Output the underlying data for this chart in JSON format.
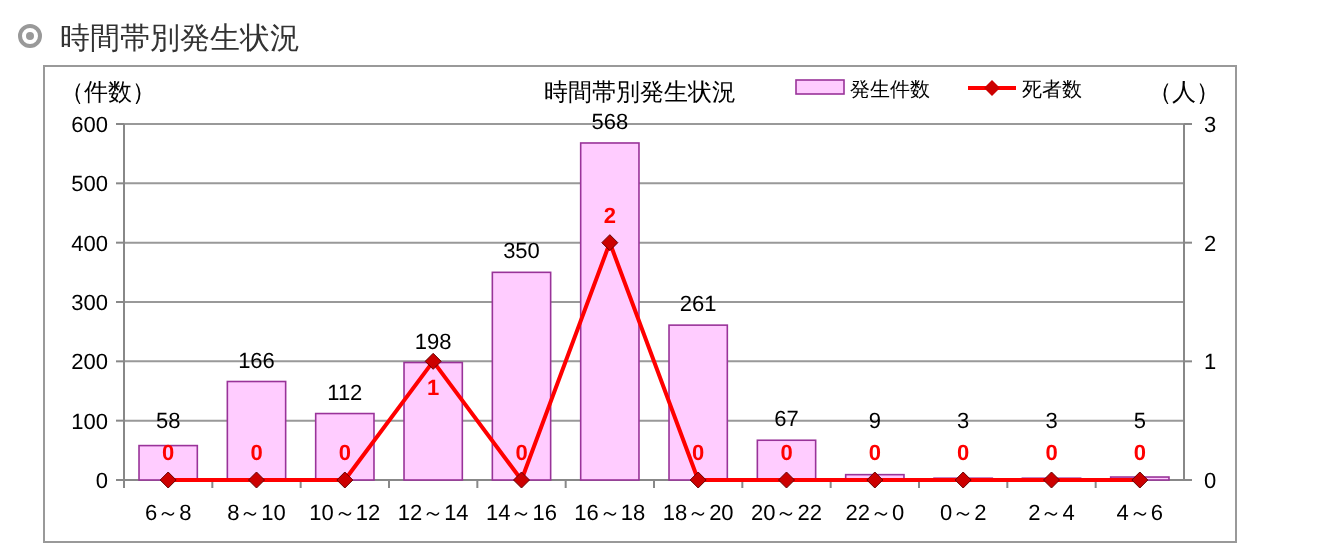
{
  "chart_data": {
    "type": "bar",
    "title": "時間帯別発生状況",
    "subtitle": "時間帯別発生状況",
    "ylabel": "（件数）",
    "y2label": "（人）",
    "categories": [
      "6～8",
      "8～10",
      "10～12",
      "12～14",
      "14～16",
      "16～18",
      "18～20",
      "20～22",
      "22～0",
      "0～2",
      "2～4",
      "4～6"
    ],
    "series": [
      {
        "name": "発生件数",
        "color": "#ffccff",
        "values": [
          58,
          166,
          112,
          198,
          350,
          568,
          261,
          67,
          9,
          3,
          3,
          5
        ]
      },
      {
        "name": "死者数",
        "type": "line",
        "axis": "y2",
        "color": "#ff0000",
        "marker": "diamond",
        "values": [
          0,
          0,
          0,
          1,
          0,
          2,
          0,
          0,
          0,
          0,
          0,
          0
        ]
      }
    ],
    "ylim": [
      0,
      600
    ],
    "yticks": [
      0,
      100,
      200,
      300,
      400,
      500,
      600
    ],
    "y2lim": [
      0,
      3
    ],
    "y2ticks": [
      0,
      1,
      2,
      3
    ],
    "grid": "y",
    "legend": "top right",
    "data_labels": true
  }
}
